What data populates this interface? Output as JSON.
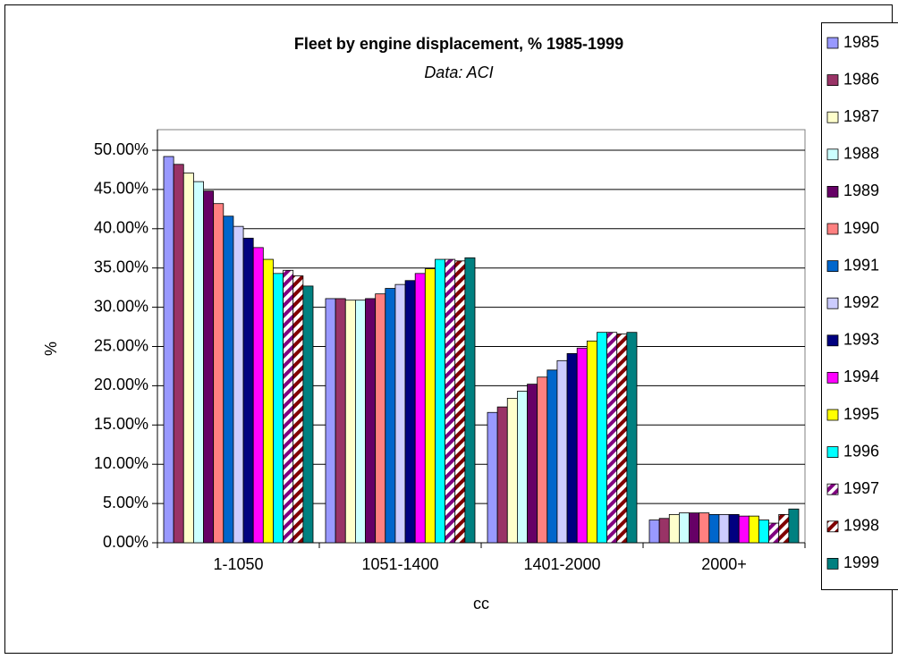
{
  "chart_data": {
    "type": "bar",
    "title": "Fleet by engine displacement, % 1985-1999",
    "subtitle": "Data: ACI",
    "x_label": "cc",
    "y_label": "%",
    "categories": [
      "1-1050",
      "1051-1400",
      "1401-2000",
      "2000+"
    ],
    "ylim": [
      0,
      50
    ],
    "yticks": [
      {
        "value": 0,
        "label": "0.00%"
      },
      {
        "value": 5,
        "label": "5.00%"
      },
      {
        "value": 10,
        "label": "10.00%"
      },
      {
        "value": 15,
        "label": "15.00%"
      },
      {
        "value": 20,
        "label": "20.00%"
      },
      {
        "value": 25,
        "label": "25.00%"
      },
      {
        "value": 30,
        "label": "30.00%"
      },
      {
        "value": 35,
        "label": "35.00%"
      },
      {
        "value": 40,
        "label": "40.00%"
      },
      {
        "value": 45,
        "label": "45.00%"
      },
      {
        "value": 50,
        "label": "50.00%"
      }
    ],
    "grid": true,
    "legend": "right",
    "series": [
      {
        "name": "1985",
        "color": "#9999ff",
        "values": [
          49.2,
          31.1,
          16.6,
          2.9
        ]
      },
      {
        "name": "1986",
        "color": "#993366",
        "values": [
          48.2,
          31.1,
          17.3,
          3.1
        ]
      },
      {
        "name": "1987",
        "color": "#ffffcc",
        "values": [
          47.1,
          30.9,
          18.4,
          3.6
        ]
      },
      {
        "name": "1988",
        "color": "#ccffff",
        "values": [
          46.0,
          30.9,
          19.3,
          3.8
        ]
      },
      {
        "name": "1989",
        "color": "#660066",
        "values": [
          44.8,
          31.1,
          20.2,
          3.8
        ]
      },
      {
        "name": "1990",
        "color": "#ff8080",
        "values": [
          43.2,
          31.7,
          21.1,
          3.8
        ]
      },
      {
        "name": "1991",
        "color": "#0066cc",
        "values": [
          41.6,
          32.4,
          22.0,
          3.6
        ]
      },
      {
        "name": "1992",
        "color": "#ccccff",
        "values": [
          40.3,
          32.9,
          23.2,
          3.6
        ]
      },
      {
        "name": "1993",
        "color": "#000080",
        "values": [
          38.8,
          33.4,
          24.1,
          3.6
        ]
      },
      {
        "name": "1994",
        "color": "#ff00ff",
        "values": [
          37.6,
          34.3,
          24.8,
          3.4
        ]
      },
      {
        "name": "1995",
        "color": "#ffff00",
        "values": [
          36.1,
          34.9,
          25.7,
          3.4
        ]
      },
      {
        "name": "1996",
        "color": "#00ffff",
        "values": [
          34.3,
          36.1,
          26.8,
          2.9
        ]
      },
      {
        "name": "1997",
        "color": "#800080",
        "hatch": true,
        "values": [
          34.7,
          36.1,
          26.8,
          2.5
        ]
      },
      {
        "name": "1998",
        "color": "#800000",
        "hatch": true,
        "values": [
          34.0,
          35.9,
          26.6,
          3.6
        ]
      },
      {
        "name": "1999",
        "color": "#008080",
        "values": [
          32.7,
          36.3,
          26.8,
          4.3
        ]
      }
    ]
  }
}
